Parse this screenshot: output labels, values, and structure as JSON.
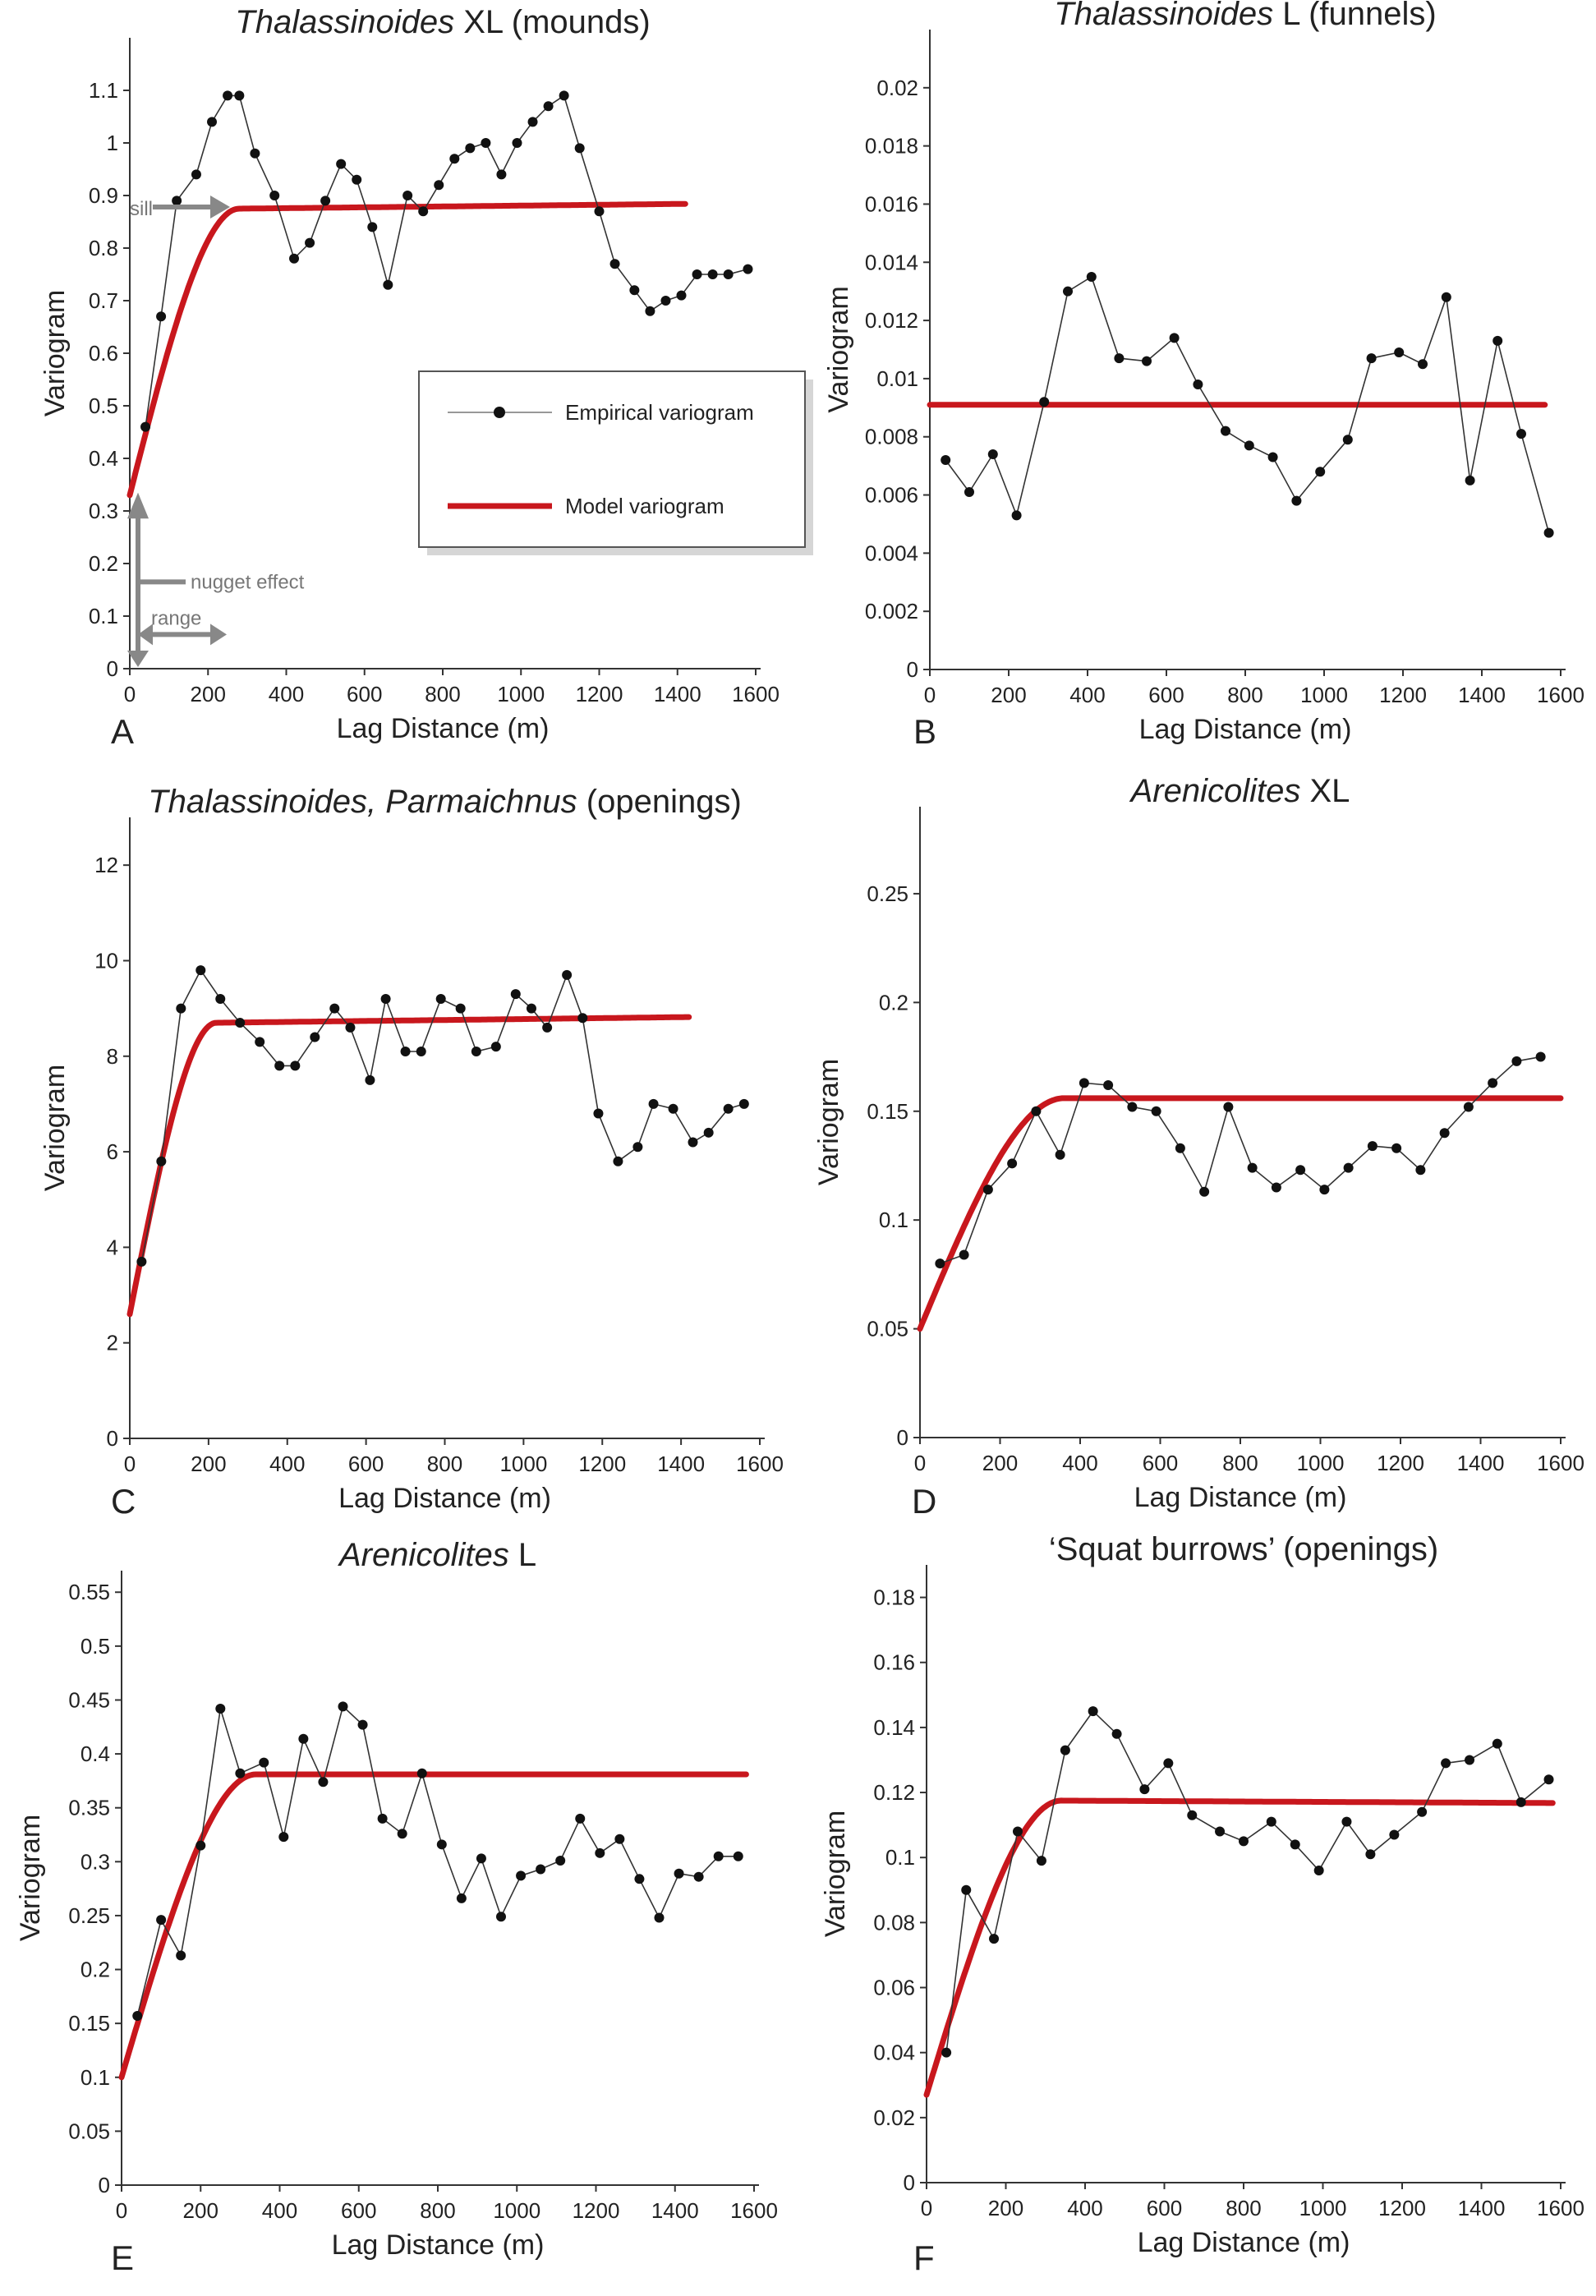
{
  "chart_data": [
    {
      "id": "A",
      "type": "line",
      "panel_label": "A",
      "title_italic": "Thalassinoides",
      "title_rest": " XL (mounds)",
      "xlabel": "Lag Distance (m)",
      "ylabel": "Variogram",
      "xlim": [
        0,
        1600
      ],
      "ylim": [
        0,
        1.2
      ],
      "xticks": [
        0,
        200,
        400,
        600,
        800,
        1000,
        1200,
        1400,
        1600
      ],
      "xtick_labels": [
        "0",
        "200",
        "400",
        "600",
        "800",
        "1000",
        "1200",
        "1400",
        "1600"
      ],
      "yticks": [
        0,
        0.1,
        0.2,
        0.3,
        0.4,
        0.5,
        0.6,
        0.7,
        0.8,
        0.9,
        1,
        1.1
      ],
      "ytick_labels": [
        "0",
        "0.1",
        "0.2",
        "0.3",
        "0.4",
        "0.5",
        "0.6",
        "0.7",
        "0.8",
        "0.9",
        "1",
        "1.1"
      ],
      "empirical": {
        "x": [
          40,
          80,
          120,
          170,
          210,
          250,
          280,
          320,
          370,
          420,
          460,
          500,
          540,
          580,
          620,
          660,
          710,
          750,
          790,
          830,
          870,
          910,
          950,
          990,
          1030,
          1070,
          1110,
          1150,
          1200,
          1240,
          1290,
          1330,
          1370,
          1410,
          1450,
          1490,
          1530,
          1580
        ],
        "y": [
          0.46,
          0.67,
          0.89,
          0.94,
          1.04,
          1.09,
          1.09,
          0.98,
          0.9,
          0.78,
          0.81,
          0.89,
          0.96,
          0.93,
          0.84,
          0.73,
          0.9,
          0.87,
          0.92,
          0.97,
          0.99,
          1.0,
          0.94,
          1.0,
          1.04,
          1.07,
          1.09,
          0.99,
          0.87,
          0.77,
          0.72,
          0.68,
          0.7,
          0.71,
          0.75,
          0.75,
          0.75,
          0.76
        ]
      },
      "model": {
        "nugget": 0.33,
        "sill": 0.875,
        "range": 280,
        "slope_after": 8e-06,
        "xmax": 1420
      },
      "legend": {
        "empirical": "Empirical variogram",
        "model": "Model variogram"
      },
      "annotations": {
        "sill": "sill",
        "nugget": "nugget effect",
        "range": "range"
      }
    },
    {
      "id": "B",
      "type": "line",
      "panel_label": "B",
      "title_italic": "Thalassinoides",
      "title_rest": " L (funnels)",
      "xlabel": "Lag Distance (m)",
      "ylabel": "Variogram",
      "xlim": [
        0,
        1600
      ],
      "ylim": [
        0,
        0.022
      ],
      "xticks": [
        0,
        200,
        400,
        600,
        800,
        1000,
        1200,
        1400,
        1600
      ],
      "xtick_labels": [
        "0",
        "200",
        "400",
        "600",
        "800",
        "1000",
        "1200",
        "1400",
        "1600"
      ],
      "yticks": [
        0,
        0.002,
        0.004,
        0.006,
        0.008,
        0.01,
        0.012,
        0.014,
        0.016,
        0.018,
        0.02
      ],
      "ytick_labels": [
        "0",
        "0.002",
        "0.004",
        "0.006",
        "0.008",
        "0.01",
        "0.012",
        "0.014",
        "0.016",
        "0.018",
        "0.02"
      ],
      "empirical": {
        "x": [
          40,
          100,
          160,
          220,
          290,
          350,
          410,
          480,
          550,
          620,
          680,
          750,
          810,
          870,
          930,
          990,
          1060,
          1120,
          1190,
          1250,
          1310,
          1370,
          1440,
          1500,
          1570
        ],
        "y": [
          0.0072,
          0.0061,
          0.0074,
          0.0053,
          0.0092,
          0.013,
          0.0135,
          0.0107,
          0.0106,
          0.0114,
          0.0098,
          0.0082,
          0.0077,
          0.0073,
          0.0058,
          0.0068,
          0.0079,
          0.0107,
          0.0109,
          0.0105,
          0.0128,
          0.0065,
          0.0113,
          0.0081,
          0.0047
        ]
      },
      "model": {
        "nugget": 0.0091,
        "sill": 0.0091,
        "range": 0,
        "slope_after": 0,
        "xmax": 1560
      }
    },
    {
      "id": "C",
      "type": "line",
      "panel_label": "C",
      "title_italic": "Thalassinoides, Parmaichnus",
      "title_rest": " (openings)",
      "xlabel": "Lag Distance (m)",
      "ylabel": "Variogram",
      "xlim": [
        0,
        1600
      ],
      "ylim": [
        0,
        13
      ],
      "xticks": [
        0,
        200,
        400,
        600,
        800,
        1000,
        1200,
        1400,
        1600
      ],
      "xtick_labels": [
        "0",
        "200",
        "400",
        "600",
        "800",
        "1000",
        "1200",
        "1400",
        "1600"
      ],
      "yticks": [
        0,
        2,
        4,
        6,
        8,
        10,
        12
      ],
      "ytick_labels": [
        "0",
        "2",
        "4",
        "6",
        "8",
        "10",
        "12"
      ],
      "empirical": {
        "x": [
          30,
          80,
          130,
          180,
          230,
          280,
          330,
          380,
          420,
          470,
          520,
          560,
          610,
          650,
          700,
          740,
          790,
          840,
          880,
          930,
          980,
          1020,
          1060,
          1110,
          1150,
          1190,
          1240,
          1290,
          1330,
          1380,
          1430,
          1470,
          1520,
          1560
        ],
        "y": [
          3.7,
          5.8,
          9.0,
          9.8,
          9.2,
          8.7,
          8.3,
          7.8,
          7.8,
          8.4,
          9.0,
          8.6,
          7.5,
          9.2,
          8.1,
          8.1,
          9.2,
          9.0,
          8.1,
          8.2,
          9.3,
          9.0,
          8.6,
          9.7,
          8.8,
          6.8,
          5.8,
          6.1,
          7.0,
          6.9,
          6.2,
          6.4,
          6.9,
          7.0
        ]
      },
      "model": {
        "nugget": 2.6,
        "sill": 8.7,
        "range": 220,
        "slope_after": 0.0001,
        "xmax": 1420
      }
    },
    {
      "id": "D",
      "type": "line",
      "panel_label": "D",
      "title_italic": "Arenicolites",
      "title_rest": " XL",
      "xlabel": "Lag Distance (m)",
      "ylabel": "Variogram",
      "xlim": [
        0,
        1600
      ],
      "ylim": [
        0,
        0.29
      ],
      "xticks": [
        0,
        200,
        400,
        600,
        800,
        1000,
        1200,
        1400,
        1600
      ],
      "xtick_labels": [
        "0",
        "200",
        "400",
        "600",
        "800",
        "1000",
        "1200",
        "1400",
        "1600"
      ],
      "yticks": [
        0,
        0.05,
        0.1,
        0.15,
        0.2,
        0.25
      ],
      "ytick_labels": [
        "0",
        "0.05",
        "0.1",
        "0.15",
        "0.2",
        "0.25"
      ],
      "empirical": {
        "x": [
          50,
          110,
          170,
          230,
          290,
          350,
          410,
          470,
          530,
          590,
          650,
          710,
          770,
          830,
          890,
          950,
          1010,
          1070,
          1130,
          1190,
          1250,
          1310,
          1370,
          1430,
          1490,
          1550
        ],
        "y": [
          0.08,
          0.084,
          0.114,
          0.126,
          0.15,
          0.13,
          0.163,
          0.162,
          0.152,
          0.15,
          0.133,
          0.113,
          0.152,
          0.124,
          0.115,
          0.123,
          0.114,
          0.124,
          0.134,
          0.133,
          0.123,
          0.14,
          0.152,
          0.163,
          0.173,
          0.175
        ]
      },
      "model": {
        "nugget": 0.05,
        "sill": 0.156,
        "range": 360,
        "slope_after": 0,
        "xmax": 1600
      }
    },
    {
      "id": "E",
      "type": "line",
      "panel_label": "E",
      "title_italic": "Arenicolites",
      "title_rest": " L",
      "xlabel": "Lag Distance (m)",
      "ylabel": "Variogram",
      "xlim": [
        0,
        1600
      ],
      "ylim": [
        0,
        0.57
      ],
      "xticks": [
        0,
        200,
        400,
        600,
        800,
        1000,
        1200,
        1400,
        1600
      ],
      "xtick_labels": [
        "0",
        "200",
        "400",
        "600",
        "800",
        "1000",
        "1200",
        "1400",
        "1600"
      ],
      "yticks": [
        0,
        0.05,
        0.1,
        0.15,
        0.2,
        0.25,
        0.3,
        0.35,
        0.4,
        0.45,
        0.5,
        0.55
      ],
      "ytick_labels": [
        "0",
        "0.05",
        "0.1",
        "0.15",
        "0.2",
        "0.25",
        "0.3",
        "0.35",
        "0.4",
        "0.45",
        "0.5",
        "0.55"
      ],
      "empirical": {
        "x": [
          40,
          100,
          150,
          200,
          250,
          300,
          360,
          410,
          460,
          510,
          560,
          610,
          660,
          710,
          760,
          810,
          860,
          910,
          960,
          1010,
          1060,
          1110,
          1160,
          1210,
          1260,
          1310,
          1360,
          1410,
          1460,
          1510,
          1560
        ],
        "y": [
          0.157,
          0.246,
          0.213,
          0.315,
          0.442,
          0.382,
          0.392,
          0.323,
          0.414,
          0.374,
          0.444,
          0.427,
          0.34,
          0.326,
          0.382,
          0.316,
          0.266,
          0.303,
          0.249,
          0.287,
          0.293,
          0.301,
          0.34,
          0.308,
          0.321,
          0.284,
          0.248,
          0.289,
          0.286,
          0.305,
          0.305
        ]
      },
      "model": {
        "nugget": 0.1,
        "sill": 0.381,
        "range": 340,
        "slope_after": 0,
        "xmax": 1580
      }
    },
    {
      "id": "F",
      "type": "line",
      "panel_label": "F",
      "title_italic": "",
      "title_rest": "‘Squat burrows’ (openings)",
      "xlabel": "Lag Distance (m)",
      "ylabel": "Variogram",
      "xlim": [
        0,
        1600
      ],
      "ylim": [
        0,
        0.19
      ],
      "xticks": [
        0,
        200,
        400,
        600,
        800,
        1000,
        1200,
        1400,
        1600
      ],
      "xtick_labels": [
        "0",
        "200",
        "400",
        "600",
        "800",
        "1000",
        "1200",
        "1400",
        "1600"
      ],
      "yticks": [
        0,
        0.02,
        0.04,
        0.06,
        0.08,
        0.1,
        0.12,
        0.14,
        0.16,
        0.18
      ],
      "ytick_labels": [
        "0",
        "0.02",
        "0.04",
        "0.06",
        "0.08",
        "0.1",
        "0.12",
        "0.14",
        "0.16",
        "0.18"
      ],
      "empirical": {
        "x": [
          50,
          100,
          170,
          230,
          290,
          350,
          420,
          480,
          550,
          610,
          670,
          740,
          800,
          870,
          930,
          990,
          1060,
          1120,
          1180,
          1250,
          1310,
          1370,
          1440,
          1500,
          1570
        ],
        "y": [
          0.04,
          0.09,
          0.075,
          0.108,
          0.099,
          0.133,
          0.145,
          0.138,
          0.121,
          0.129,
          0.113,
          0.108,
          0.105,
          0.111,
          0.104,
          0.096,
          0.111,
          0.101,
          0.107,
          0.114,
          0.129,
          0.13,
          0.135,
          0.117,
          0.124
        ]
      },
      "model": {
        "nugget": 0.027,
        "sill": 0.1175,
        "range": 340,
        "slope_after": -6e-07,
        "xmax": 1580
      }
    }
  ]
}
